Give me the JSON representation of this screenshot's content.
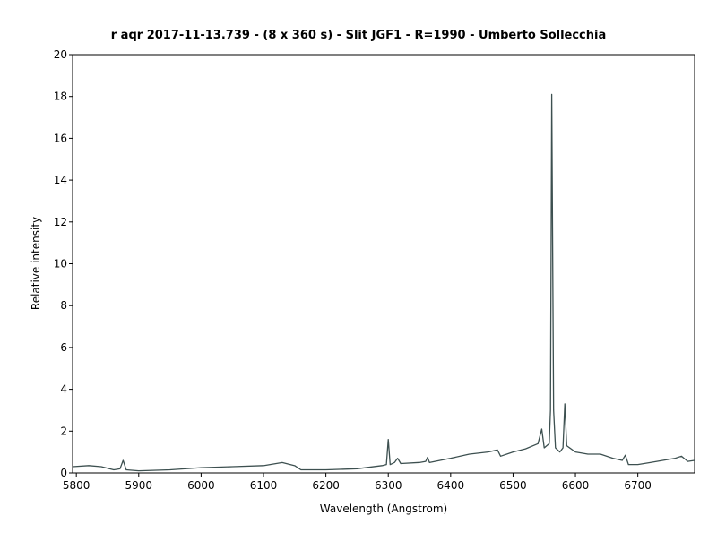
{
  "chart_data": {
    "type": "line",
    "title": "r aqr   2017-11-13.739 - (8 x 360 s) - Slit JGF1 - R=1990 - Umberto Sollecchia",
    "x_label": "Wavelength (Angstrom)",
    "y_label": "Relative intensity",
    "x": [
      5794,
      5820,
      5840,
      5860,
      5870,
      5875,
      5880,
      5900,
      5950,
      6000,
      6050,
      6100,
      6130,
      6150,
      6160,
      6200,
      6250,
      6290,
      6297,
      6300,
      6303,
      6310,
      6315,
      6320,
      6350,
      6360,
      6363,
      6366,
      6400,
      6430,
      6460,
      6475,
      6480,
      6500,
      6520,
      6540,
      6546,
      6550,
      6558,
      6560,
      6562,
      6565,
      6568,
      6575,
      6580,
      6583,
      6586,
      6600,
      6620,
      6640,
      6660,
      6675,
      6680,
      6685,
      6700,
      6720,
      6740,
      6760,
      6770,
      6780,
      6791
    ],
    "series": [
      {
        "name": "r aqr",
        "color": "#3d5050",
        "values": [
          0.3,
          0.35,
          0.3,
          0.15,
          0.2,
          0.6,
          0.15,
          0.1,
          0.15,
          0.25,
          0.3,
          0.35,
          0.5,
          0.35,
          0.15,
          0.15,
          0.2,
          0.35,
          0.4,
          1.6,
          0.4,
          0.5,
          0.7,
          0.45,
          0.5,
          0.55,
          0.75,
          0.5,
          0.7,
          0.9,
          1.0,
          1.1,
          0.8,
          1.0,
          1.15,
          1.4,
          2.1,
          1.2,
          1.4,
          3,
          18.1,
          3,
          1.2,
          1.0,
          1.2,
          3.3,
          1.3,
          1.0,
          0.9,
          0.9,
          0.7,
          0.6,
          0.85,
          0.4,
          0.4,
          0.5,
          0.6,
          0.7,
          0.8,
          0.55,
          0.6
        ]
      }
    ],
    "xlim": [
      5794,
      6791
    ],
    "ylim": [
      0,
      20
    ],
    "xticks": [
      5800,
      5900,
      6000,
      6100,
      6200,
      6300,
      6400,
      6500,
      6600,
      6700
    ],
    "yticks": [
      0,
      2,
      4,
      6,
      8,
      10,
      12,
      14,
      16,
      18,
      20
    ],
    "grid": false
  }
}
